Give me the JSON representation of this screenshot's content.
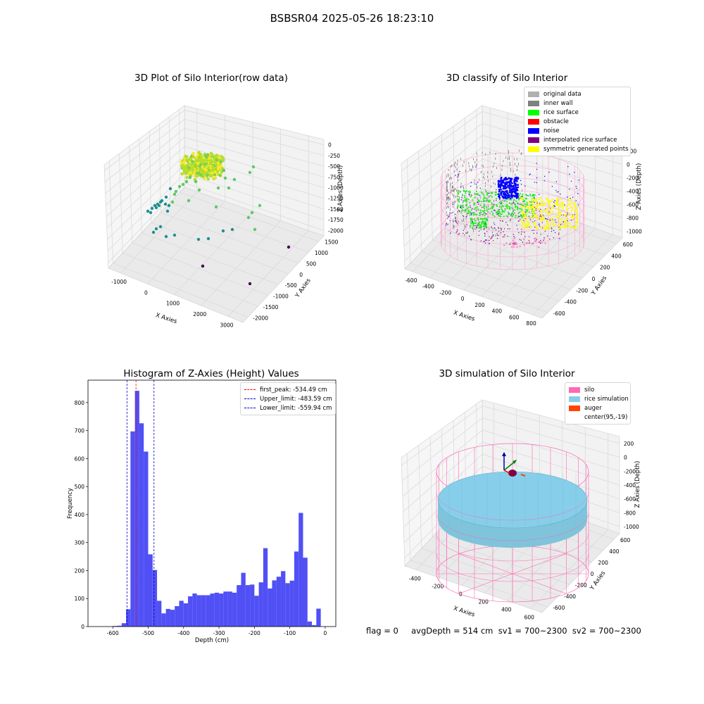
{
  "suptitle": "BSBSR04 2025-05-26 18:23:10",
  "footer": "flag = 0     avgDepth = 514 cm  sv1 = 700~2300  sv2 = 700~2300",
  "colors": {
    "hist_bar": "#5050f5",
    "first_peak": "#ff0000",
    "limit_lines": "#0000cc",
    "silo_wire": "#ff69b4",
    "rice_sim": "#87ceeb"
  },
  "chart_data": [
    {
      "type": "scatter3d",
      "title": "3D Plot of Silo Interior(row data)",
      "xlabel": "X Axies",
      "ylabel": "Y Axies",
      "zlabel": "Z Axies (Depth)",
      "x_ticks": [
        "-1000",
        "0",
        "1000",
        "2000",
        "3000"
      ],
      "y_ticks": [
        "-2000",
        "-1500",
        "-1000",
        "-500",
        "0",
        "500",
        "1000",
        "1500"
      ],
      "z_ticks": [
        "-2000",
        "-1750",
        "-1500",
        "-1250",
        "-1000",
        "-750",
        "-500",
        "-250",
        "0"
      ],
      "colormap": "viridis"
    },
    {
      "type": "scatter3d",
      "title": "3D classify of Silo Interior",
      "xlabel": "X Axies",
      "ylabel": "Y Axies",
      "zlabel": "Z Axies (Depth)",
      "x_ticks": [
        "-600",
        "-400",
        "-200",
        "0",
        "200",
        "400",
        "600",
        "800"
      ],
      "y_ticks": [
        "-600",
        "-400",
        "-200",
        "0",
        "200",
        "400",
        "600"
      ],
      "z_ticks": [
        "-1000",
        "-800",
        "-600",
        "-400",
        "-200",
        "0",
        "200"
      ],
      "legend_position": "upper-right",
      "legend": [
        {
          "label": "original data",
          "color": "#b0b0b0"
        },
        {
          "label": "inner wall",
          "color": "#808080"
        },
        {
          "label": "rice surface",
          "color": "#00ff00"
        },
        {
          "label": "obstacle",
          "color": "#ff0000"
        },
        {
          "label": "noise",
          "color": "#0000ff"
        },
        {
          "label": "interpolated rice surface",
          "color": "#800080"
        },
        {
          "label": "symmetric generated points",
          "color": "#ffff00"
        }
      ]
    },
    {
      "type": "bar",
      "title": "Histogram of Z-Axies (Height) Values",
      "xlabel": "Depth (cm)",
      "ylabel": "Frequency",
      "xlim": [
        -670,
        30
      ],
      "ylim": [
        0,
        880
      ],
      "x_ticks": [
        -600,
        -500,
        -400,
        -300,
        -200,
        -100,
        0
      ],
      "y_ticks": [
        0,
        100,
        200,
        300,
        400,
        500,
        600,
        700,
        800
      ],
      "bin_start": -650,
      "bin_width": 12.5,
      "values": [
        0,
        0,
        0,
        0,
        2,
        3,
        12,
        62,
        697,
        842,
        726,
        625,
        258,
        202,
        92,
        47,
        63,
        60,
        73,
        92,
        83,
        108,
        118,
        112,
        112,
        112,
        118,
        121,
        118,
        125,
        125,
        121,
        148,
        192,
        148,
        150,
        110,
        158,
        280,
        136,
        165,
        178,
        198,
        155,
        164,
        268,
        406,
        246,
        18,
        5,
        64
      ],
      "legend_position": "upper-right",
      "lines": [
        {
          "label": "first_peak: -534.49 cm",
          "value": -534.49,
          "color": "#ff0000"
        },
        {
          "label": "Upper_limit: -483.59 cm",
          "value": -483.59,
          "color": "#0000cc"
        },
        {
          "label": "Lower_limit: -559.94 cm",
          "value": -559.94,
          "color": "#0000cc"
        }
      ]
    },
    {
      "type": "surface3d",
      "title": "3D simulation of Silo Interior",
      "xlabel": "X Axies",
      "ylabel": "Y Axies",
      "zlabel": "Z Axies (Depth)",
      "x_ticks": [
        "-400",
        "-200",
        "0",
        "200",
        "400",
        "600"
      ],
      "y_ticks": [
        "-600",
        "-400",
        "-200",
        "0",
        "200",
        "400",
        "600"
      ],
      "z_ticks": [
        "-1000",
        "-800",
        "-600",
        "-400",
        "-200",
        "0",
        "200"
      ],
      "legend_position": "upper-right",
      "legend": [
        {
          "label": "silo",
          "color": "#ff69b4"
        },
        {
          "label": "rice simulation",
          "color": "#87ceeb"
        },
        {
          "label": "auger",
          "color": "#ff4500"
        },
        {
          "label": "center(95,-19)",
          "color": ""
        }
      ]
    }
  ]
}
